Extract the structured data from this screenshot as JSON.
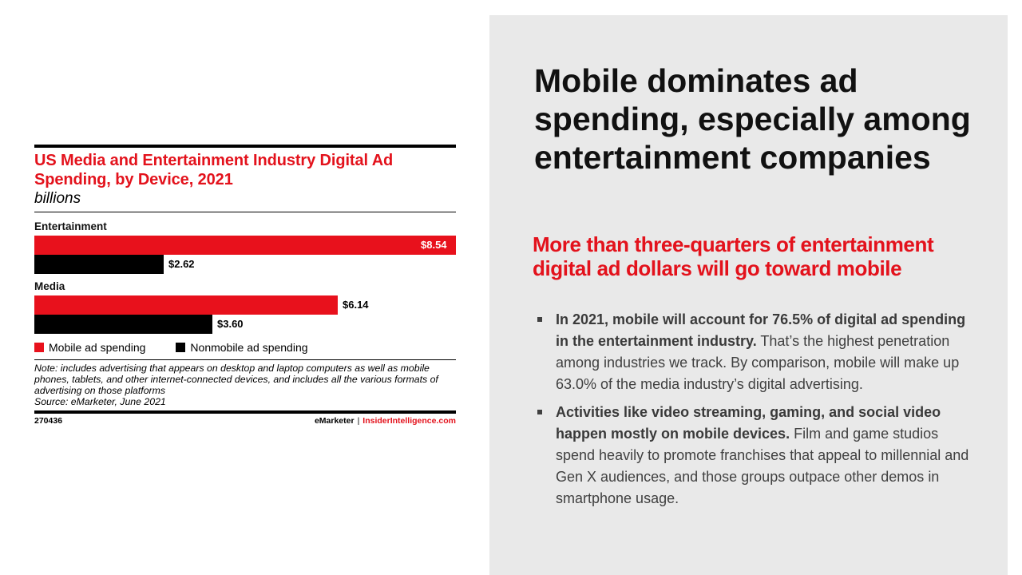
{
  "chart_data": {
    "type": "bar",
    "orientation": "horizontal",
    "title": "US Media and Entertainment Industry Digital Ad Spending, by Device, 2021",
    "subtitle": "billions",
    "categories": [
      "Entertainment",
      "Media"
    ],
    "series": [
      {
        "name": "Mobile ad spending",
        "color": "#e8111c",
        "values": [
          8.54,
          6.14
        ],
        "labels": [
          "$8.54",
          "$6.14"
        ]
      },
      {
        "name": "Nonmobile ad spending",
        "color": "#000000",
        "values": [
          2.62,
          3.6
        ],
        "labels": [
          "$2.62",
          "$3.60"
        ]
      }
    ],
    "xlim": [
      0,
      8.54
    ],
    "grid": false,
    "legend_position": "bottom-left",
    "note": "Note: includes advertising that appears on desktop and laptop computers as well as mobile phones, tablets, and other internet-connected devices, and includes all the various formats of advertising on those platforms",
    "source": "Source: eMarketer, June 2021",
    "chart_id": "270436",
    "brand": "eMarketer",
    "separator": "|",
    "site": "InsiderIntelligence.com"
  },
  "panel": {
    "headline": "Mobile dominates ad spending, especially among entertainment companies",
    "subhead": "More than three-quarters of entertainment digital ad dollars will go toward mobile",
    "bullets": [
      {
        "bold": "In 2021, mobile will account for 76.5% of digital ad spending in the entertainment industry.",
        "text": " That’s the highest penetration among industries we track.  By comparison, mobile will make up 63.0% of the media industry’s digital advertising."
      },
      {
        "bold": "Activities like video streaming, gaming, and social video happen mostly on mobile devices.",
        "text": " Film and game studios spend heavily to promote franchises that appeal to millennial and Gen X audiences, and those groups outpace other demos in  smartphone usage."
      }
    ]
  },
  "colors": {
    "accent": "#e3121c",
    "panel_bg": "#e9e9e9"
  }
}
